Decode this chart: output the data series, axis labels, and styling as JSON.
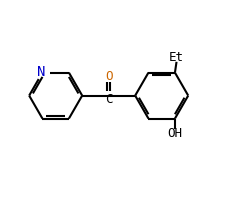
{
  "background_color": "#ffffff",
  "line_color": "#000000",
  "N_color": "#0000cc",
  "O_color": "#cc6600",
  "label_fontsize": 9,
  "line_width": 1.5,
  "figsize": [
    2.37,
    1.99
  ],
  "dpi": 100,
  "xlim": [
    -1,
    11
  ],
  "ylim": [
    -1,
    9
  ]
}
